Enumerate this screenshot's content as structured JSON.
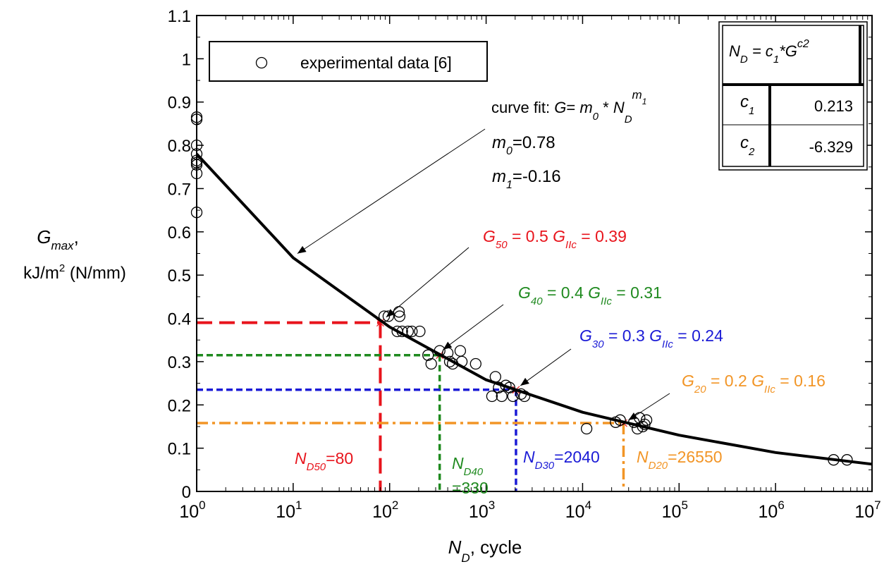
{
  "chart_data": {
    "type": "scatter",
    "xscale": "log",
    "xlim": [
      1,
      10000000
    ],
    "ylim": [
      0,
      1.1
    ],
    "grid": false,
    "legend_position": "top-left",
    "xlabel": {
      "main": "N",
      "sub": "D",
      "rest": ", cycle"
    },
    "ylabel": {
      "main": "G",
      "sub": "max",
      "rest": ",",
      "line2": "kJ/m",
      "sup": "2",
      "line2_rest": " (N/mm)"
    },
    "x_ticks": [
      {
        "value": 1,
        "base": "10",
        "exp": "0"
      },
      {
        "value": 10,
        "base": "10",
        "exp": "1"
      },
      {
        "value": 100,
        "base": "10",
        "exp": "2"
      },
      {
        "value": 1000,
        "base": "10",
        "exp": "3"
      },
      {
        "value": 10000,
        "base": "10",
        "exp": "4"
      },
      {
        "value": 100000,
        "base": "10",
        "exp": "5"
      },
      {
        "value": 1000000,
        "base": "10",
        "exp": "6"
      },
      {
        "value": 10000000,
        "base": "10",
        "exp": "7"
      }
    ],
    "y_ticks": [
      {
        "value": 0,
        "label": "0"
      },
      {
        "value": 0.1,
        "label": "0.1"
      },
      {
        "value": 0.2,
        "label": "0.2"
      },
      {
        "value": 0.3,
        "label": "0.3"
      },
      {
        "value": 0.4,
        "label": "0.4"
      },
      {
        "value": 0.5,
        "label": "0.5"
      },
      {
        "value": 0.6,
        "label": "0.6"
      },
      {
        "value": 0.7,
        "label": "0.7"
      },
      {
        "value": 0.8,
        "label": "0.8"
      },
      {
        "value": 0.9,
        "label": "0.9"
      },
      {
        "value": 1,
        "label": "1"
      },
      {
        "value": 1.1,
        "label": "1.1"
      }
    ],
    "series": [
      {
        "name": "experimental data [6]",
        "marker": "open-circle",
        "points": [
          [
            1,
            0.865
          ],
          [
            1,
            0.86
          ],
          [
            1,
            0.8
          ],
          [
            1,
            0.78
          ],
          [
            1,
            0.765
          ],
          [
            1,
            0.76
          ],
          [
            1,
            0.755
          ],
          [
            1,
            0.735
          ],
          [
            1,
            0.645
          ],
          [
            88,
            0.405
          ],
          [
            97,
            0.405
          ],
          [
            125,
            0.415
          ],
          [
            127,
            0.405
          ],
          [
            120,
            0.37
          ],
          [
            135,
            0.37
          ],
          [
            155,
            0.37
          ],
          [
            170,
            0.37
          ],
          [
            205,
            0.37
          ],
          [
            250,
            0.315
          ],
          [
            270,
            0.295
          ],
          [
            330,
            0.325
          ],
          [
            400,
            0.32
          ],
          [
            420,
            0.3
          ],
          [
            450,
            0.295
          ],
          [
            540,
            0.325
          ],
          [
            560,
            0.3
          ],
          [
            780,
            0.295
          ],
          [
            1150,
            0.22
          ],
          [
            1250,
            0.265
          ],
          [
            1350,
            0.24
          ],
          [
            1450,
            0.22
          ],
          [
            1600,
            0.245
          ],
          [
            1750,
            0.24
          ],
          [
            1900,
            0.22
          ],
          [
            2300,
            0.225
          ],
          [
            2500,
            0.22
          ],
          [
            11000,
            0.145
          ],
          [
            22000,
            0.16
          ],
          [
            24500,
            0.165
          ],
          [
            34000,
            0.16
          ],
          [
            37000,
            0.145
          ],
          [
            39000,
            0.17
          ],
          [
            42000,
            0.15
          ],
          [
            44000,
            0.155
          ],
          [
            46000,
            0.165
          ],
          [
            4000000,
            0.073
          ],
          [
            5500000,
            0.073
          ]
        ]
      },
      {
        "name": "curve fit",
        "style": "solid-line",
        "color": "#000000",
        "points": [
          [
            1,
            0.78
          ],
          [
            10,
            0.54
          ],
          [
            100,
            0.38
          ],
          [
            1000,
            0.258
          ],
          [
            10000,
            0.183
          ],
          [
            100000,
            0.13
          ],
          [
            1000000,
            0.09
          ],
          [
            10000000,
            0.063
          ]
        ]
      }
    ],
    "reference_lines": [
      {
        "name": "G50",
        "color": "#e8141c",
        "dash": "long-dash",
        "x": 80,
        "y": 0.39
      },
      {
        "name": "G40",
        "color": "#1f8a1f",
        "dash": "short-dash",
        "x": 330,
        "y": 0.315
      },
      {
        "name": "G30",
        "color": "#1b1bd6",
        "dash": "short-dash",
        "x": 2040,
        "y": 0.235
      },
      {
        "name": "G20",
        "color": "#f29526",
        "dash": "dash-dot",
        "x": 26550,
        "y": 0.158
      }
    ],
    "legend": {
      "label": "experimental data [6]"
    },
    "fit_annotation": {
      "title": {
        "prefix": "curve fit: ",
        "G": "G",
        "eq": "= ",
        "m": "m",
        "m_sub": "0",
        "star": " * ",
        "N": "N",
        "N_sub": "D",
        "exp": "m",
        "exp_sub": "1"
      },
      "m0": {
        "m": "m",
        "sub": "0",
        "value": "=0.78"
      },
      "m1": {
        "m": "m",
        "sub": "1",
        "value": "=-0.16"
      }
    },
    "g_labels": [
      {
        "key": "g50",
        "G": "G",
        "sub": "50",
        "mid": " = 0.5 ",
        "G2": "G",
        "sub2": "IIc",
        "rest": " = 0.39",
        "color": "#e8141c"
      },
      {
        "key": "g40",
        "G": "G",
        "sub": "40",
        "mid": " = 0.4 ",
        "G2": "G",
        "sub2": "IIc",
        "rest": " = 0.31",
        "color": "#1f8a1f"
      },
      {
        "key": "g30",
        "G": "G",
        "sub": "30",
        "mid": " = 0.3 ",
        "G2": "G",
        "sub2": "IIc",
        "rest": " = 0.24",
        "color": "#1b1bd6"
      },
      {
        "key": "g20",
        "G": "G",
        "sub": "20",
        "mid": " = 0.2 ",
        "G2": "G",
        "sub2": "IIc",
        "rest": " = 0.16",
        "color": "#f29526"
      }
    ],
    "n_labels": [
      {
        "key": "nd50",
        "N": "N",
        "sub": "D50",
        "rest": "=80",
        "color": "#e8141c"
      },
      {
        "key": "nd40",
        "N": "N",
        "sub": "D40",
        "rest": "=330",
        "color": "#1f8a1f"
      },
      {
        "key": "nd30",
        "N": "N",
        "sub": "D30",
        "rest": "=2040",
        "color": "#1b1bd6"
      },
      {
        "key": "nd20",
        "N": "N",
        "sub": "D20",
        "rest": "=26550",
        "color": "#f29526"
      }
    ],
    "inset_table": {
      "header": {
        "N": "N",
        "N_sub": "D",
        "mid": " = c",
        "c_sub": "1",
        "star": "*G",
        "sup": "c2"
      },
      "rows": [
        {
          "c": "c",
          "sub": "1",
          "value": "0.213"
        },
        {
          "c": "c",
          "sub": "2",
          "value": "-6.329"
        }
      ]
    }
  }
}
